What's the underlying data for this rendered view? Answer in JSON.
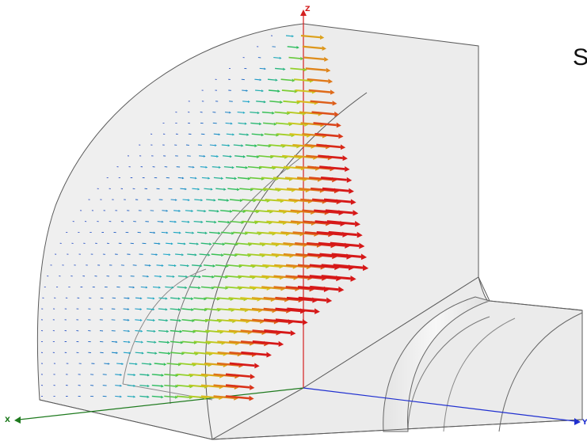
{
  "corner_text": "S",
  "axes": {
    "x": {
      "label": "X",
      "color": "#1e7a1e"
    },
    "y": {
      "label": "Y",
      "color": "#1f2fd0"
    },
    "z": {
      "label": "Z",
      "color": "#d42020"
    }
  },
  "colors": {
    "geometry_fill": "#efefef",
    "geometry_shade": "#e2e2e2",
    "edge": "#5a5a5a",
    "field_colormap": [
      "#1a3fbf",
      "#1fa7c8",
      "#2bbd5a",
      "#8fd12a",
      "#d8c51c",
      "#e07a1a",
      "#d61818"
    ]
  },
  "vector_field": {
    "icon": "arrow-glyph",
    "description_visible": false
  }
}
